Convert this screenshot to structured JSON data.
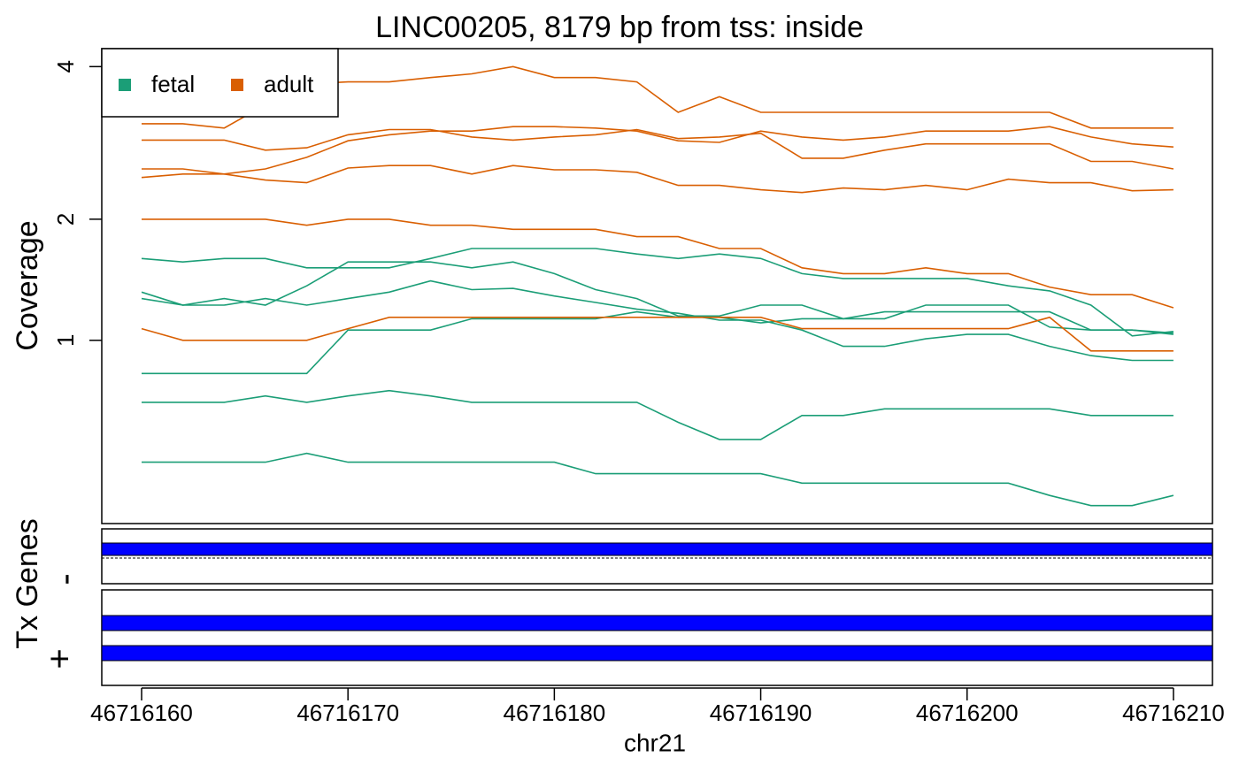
{
  "chart_data": {
    "type": "line",
    "title": "LINC00205, 8179 bp from tss: inside",
    "x_label": "chr21",
    "y_label": "Coverage",
    "y_transform": "log2(y+1)",
    "x": [
      46716160,
      46716162,
      46716164,
      46716166,
      46716168,
      46716170,
      46716172,
      46716174,
      46716176,
      46716178,
      46716180,
      46716182,
      46716184,
      46716186,
      46716188,
      46716190,
      46716192,
      46716194,
      46716196,
      46716198,
      46716200,
      46716202,
      46716204,
      46716206,
      46716208,
      46716210
    ],
    "xlim": [
      46716158.07,
      46716211.89
    ],
    "xticks": [
      46716160,
      46716170,
      46716180,
      46716190,
      46716200,
      46716210
    ],
    "ylim": [
      0.083,
      4.31
    ],
    "yticks": [
      1,
      2,
      4
    ],
    "legend_position": "top-left",
    "series": [
      {
        "name": "fetal",
        "color": "#1b9e77",
        "values": [
          1.63,
          1.6,
          1.63,
          1.63,
          1.55,
          1.55,
          1.55,
          1.63,
          1.72,
          1.72,
          1.72,
          1.72,
          1.67,
          1.63,
          1.67,
          1.63,
          1.5,
          1.46,
          1.46,
          1.46,
          1.46,
          1.4,
          1.36,
          1.25,
          1.03,
          1.06
        ]
      },
      {
        "name": "fetal",
        "color": "#1b9e77",
        "values": [
          1.35,
          1.25,
          1.3,
          1.25,
          1.4,
          1.6,
          1.6,
          1.6,
          1.55,
          1.6,
          1.5,
          1.37,
          1.3,
          1.17,
          1.17,
          1.25,
          1.25,
          1.15,
          1.15,
          1.25,
          1.25,
          1.25,
          1.09,
          1.07,
          1.07,
          1.04
        ]
      },
      {
        "name": "fetal",
        "color": "#1b9e77",
        "values": [
          1.3,
          1.25,
          1.25,
          1.3,
          1.25,
          1.3,
          1.35,
          1.44,
          1.37,
          1.38,
          1.32,
          1.27,
          1.22,
          1.19,
          1.14,
          1.14,
          1.07,
          0.96,
          0.96,
          1.01,
          1.04,
          1.04,
          0.96,
          0.9,
          0.87,
          0.87
        ]
      },
      {
        "name": "fetal",
        "color": "#1b9e77",
        "values": [
          0.79,
          0.79,
          0.79,
          0.79,
          0.79,
          1.07,
          1.07,
          1.07,
          1.15,
          1.15,
          1.15,
          1.15,
          1.2,
          1.16,
          1.16,
          1.12,
          1.15,
          1.15,
          1.2,
          1.2,
          1.2,
          1.2,
          1.2,
          1.07,
          1.07,
          1.05
        ]
      },
      {
        "name": "fetal",
        "color": "#1b9e77",
        "values": [
          0.625,
          0.625,
          0.625,
          0.66,
          0.625,
          0.66,
          0.69,
          0.66,
          0.625,
          0.625,
          0.625,
          0.625,
          0.625,
          0.52,
          0.435,
          0.435,
          0.555,
          0.555,
          0.59,
          0.59,
          0.59,
          0.59,
          0.59,
          0.555,
          0.555,
          0.555
        ]
      },
      {
        "name": "fetal",
        "color": "#1b9e77",
        "values": [
          0.33,
          0.33,
          0.33,
          0.33,
          0.37,
          0.33,
          0.33,
          0.33,
          0.33,
          0.33,
          0.33,
          0.28,
          0.28,
          0.28,
          0.28,
          0.28,
          0.24,
          0.24,
          0.24,
          0.24,
          0.24,
          0.24,
          0.19,
          0.15,
          0.15,
          0.19
        ]
      },
      {
        "name": "adult",
        "color": "#d95f02",
        "values": [
          3.13,
          3.13,
          3.07,
          3.4,
          3.72,
          3.75,
          3.75,
          3.82,
          3.88,
          4.0,
          3.82,
          3.82,
          3.75,
          3.29,
          3.52,
          3.29,
          3.29,
          3.29,
          3.29,
          3.29,
          3.29,
          3.29,
          3.29,
          3.07,
          3.07,
          3.07
        ]
      },
      {
        "name": "adult",
        "color": "#d95f02",
        "values": [
          2.91,
          2.91,
          2.91,
          2.78,
          2.81,
          2.98,
          3.05,
          3.05,
          2.95,
          2.91,
          2.95,
          2.98,
          3.05,
          2.93,
          2.95,
          3.0,
          2.68,
          2.68,
          2.78,
          2.86,
          2.86,
          2.86,
          2.86,
          2.64,
          2.64,
          2.55
        ]
      },
      {
        "name": "adult",
        "color": "#d95f02",
        "values": [
          2.55,
          2.55,
          2.49,
          2.55,
          2.69,
          2.9,
          2.98,
          3.03,
          3.03,
          3.09,
          3.09,
          3.07,
          3.03,
          2.9,
          2.88,
          3.03,
          2.95,
          2.91,
          2.95,
          3.03,
          3.03,
          3.03,
          3.09,
          2.95,
          2.86,
          2.82
        ]
      },
      {
        "name": "adult",
        "color": "#d95f02",
        "values": [
          2.45,
          2.49,
          2.49,
          2.42,
          2.39,
          2.56,
          2.59,
          2.59,
          2.49,
          2.59,
          2.54,
          2.54,
          2.51,
          2.36,
          2.36,
          2.31,
          2.28,
          2.33,
          2.31,
          2.36,
          2.31,
          2.43,
          2.39,
          2.39,
          2.3,
          2.31
        ]
      },
      {
        "name": "adult",
        "color": "#d95f02",
        "values": [
          2.0,
          2.0,
          2.0,
          2.0,
          1.94,
          2.0,
          2.0,
          1.94,
          1.94,
          1.9,
          1.9,
          1.9,
          1.83,
          1.83,
          1.72,
          1.72,
          1.55,
          1.5,
          1.5,
          1.55,
          1.5,
          1.5,
          1.39,
          1.33,
          1.33,
          1.23
        ]
      },
      {
        "name": "adult",
        "color": "#d95f02",
        "values": [
          1.08,
          1.0,
          1.0,
          1.0,
          1.0,
          1.08,
          1.16,
          1.16,
          1.16,
          1.16,
          1.16,
          1.16,
          1.16,
          1.16,
          1.16,
          1.16,
          1.08,
          1.08,
          1.08,
          1.08,
          1.08,
          1.08,
          1.16,
          0.93,
          0.93,
          0.93
        ]
      }
    ]
  },
  "tracks": {
    "label": "Tx Genes",
    "minus": "-",
    "plus": "+"
  }
}
